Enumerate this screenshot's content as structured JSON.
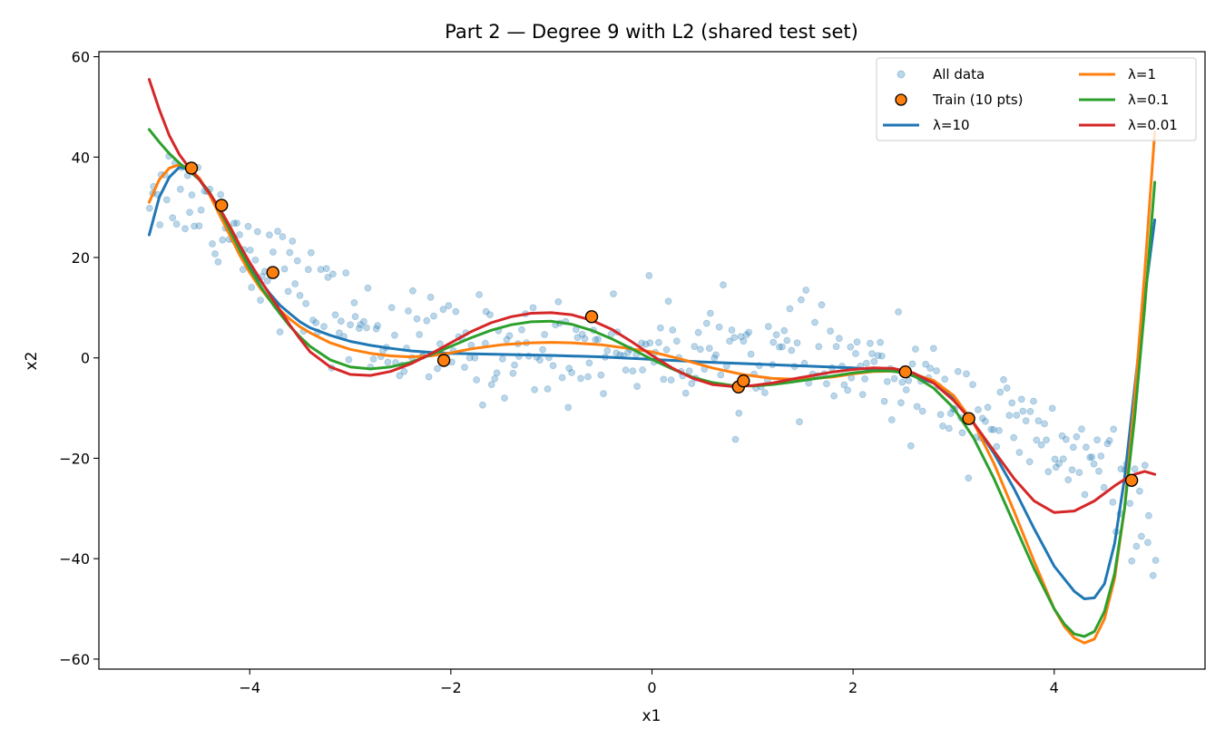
{
  "chart_data": {
    "type": "scatter",
    "title": "Part 2 — Degree 9 with L2 (shared test set)",
    "xlabel": "x1",
    "ylabel": "x2",
    "xlim": [
      -5.5,
      5.5
    ],
    "ylim": [
      -62,
      61
    ],
    "xticks": [
      {
        "value": -4,
        "label": "−4"
      },
      {
        "value": -2,
        "label": "−2"
      },
      {
        "value": 0,
        "label": "0"
      },
      {
        "value": 2,
        "label": "2"
      },
      {
        "value": 4,
        "label": "4"
      }
    ],
    "yticks": [
      {
        "value": -60,
        "label": "−60"
      },
      {
        "value": -40,
        "label": "−40"
      },
      {
        "value": -20,
        "label": "−20"
      },
      {
        "value": 0,
        "label": "0"
      },
      {
        "value": 20,
        "label": "20"
      },
      {
        "value": 40,
        "label": "40"
      },
      {
        "value": 60,
        "label": "60"
      }
    ],
    "legend": {
      "position": "top-right",
      "columns": 2,
      "entries": [
        {
          "label": "All data",
          "kind": "scatter-small",
          "color": "#1f77b4"
        },
        {
          "label": "Train (10 pts)",
          "kind": "scatter-train",
          "color": "#ff7f0e"
        },
        {
          "label": "λ=10",
          "kind": "line",
          "color": "#1f77b4"
        },
        {
          "label": "λ=1",
          "kind": "line",
          "color": "#ff7f0e"
        },
        {
          "label": "λ=0.1",
          "kind": "line",
          "color": "#2ca02c"
        },
        {
          "label": "λ=0.01",
          "kind": "line",
          "color": "#d62728"
        }
      ]
    },
    "all_data": {
      "name": "All data",
      "color": "#1f77b4",
      "alpha": 0.3,
      "count": 400,
      "x_range": [
        -5,
        5
      ],
      "trend_x": [
        -5,
        -4.6,
        -4.2,
        -3.8,
        -3.4,
        -3,
        -2.5,
        -2,
        -1.5,
        -1,
        -0.5,
        0,
        0.5,
        1,
        1.5,
        2,
        2.5,
        3,
        3.3,
        3.6,
        4,
        4.4,
        4.7,
        5
      ],
      "trend_y": [
        35,
        33,
        26,
        19,
        12,
        7,
        3,
        2,
        1.5,
        1.5,
        2,
        2,
        1.5,
        1,
        0,
        -2,
        -5,
        -8,
        -11,
        -14,
        -18,
        -22,
        -27,
        -33
      ],
      "noise_sd": 5
    },
    "train": {
      "name": "Train (10 pts)",
      "color": "#ff7f0e",
      "edge": "#000000",
      "x": [
        -4.58,
        -4.28,
        -3.77,
        -2.07,
        -0.6,
        0.86,
        0.91,
        2.52,
        3.15,
        4.77
      ],
      "y": [
        37.8,
        30.4,
        17.0,
        -0.5,
        8.2,
        -5.8,
        -4.6,
        -2.8,
        -12.1,
        -24.4
      ]
    },
    "series": [
      {
        "name": "λ=10",
        "color": "#1f77b4",
        "x": [
          -5,
          -4.9,
          -4.8,
          -4.7,
          -4.6,
          -4.5,
          -4.4,
          -4.3,
          -4.2,
          -4.1,
          -4,
          -3.9,
          -3.8,
          -3.7,
          -3.6,
          -3.5,
          -3.4,
          -3.2,
          -3,
          -2.8,
          -2.6,
          -2.4,
          -2.2,
          -2,
          -1.5,
          -1,
          -0.5,
          0,
          0.5,
          1,
          1.5,
          2,
          2.2,
          2.5,
          2.8,
          3,
          3.2,
          3.4,
          3.6,
          3.8,
          4,
          4.2,
          4.3,
          4.4,
          4.5,
          4.6,
          4.7,
          4.8,
          4.9,
          5
        ],
        "y": [
          24.5,
          32,
          36,
          38,
          37.5,
          35.5,
          32.5,
          29,
          25.5,
          22,
          18.5,
          15.5,
          12.8,
          10.5,
          8.8,
          7.2,
          6,
          4.5,
          3.3,
          2.5,
          1.9,
          1.4,
          1.1,
          0.9,
          0.7,
          0.5,
          0.2,
          -0.3,
          -0.8,
          -1.2,
          -1.6,
          -2,
          -2.3,
          -2.9,
          -5,
          -8,
          -13,
          -19,
          -26,
          -34,
          -41.5,
          -46.5,
          -48,
          -47.8,
          -45,
          -37,
          -24,
          -6,
          12,
          27.5
        ]
      },
      {
        "name": "λ=1",
        "color": "#ff7f0e",
        "x": [
          -5,
          -4.9,
          -4.8,
          -4.7,
          -4.6,
          -4.5,
          -4.4,
          -4.3,
          -4.2,
          -4.1,
          -4,
          -3.9,
          -3.8,
          -3.7,
          -3.6,
          -3.5,
          -3.4,
          -3.2,
          -3,
          -2.8,
          -2.6,
          -2.4,
          -2.2,
          -2,
          -1.8,
          -1.5,
          -1.2,
          -1,
          -0.8,
          -0.5,
          -0.2,
          0,
          0.3,
          0.6,
          0.9,
          1.2,
          1.5,
          1.8,
          2,
          2.2,
          2.5,
          2.8,
          3,
          3.2,
          3.4,
          3.6,
          3.8,
          4,
          4.1,
          4.2,
          4.3,
          4.4,
          4.5,
          4.6,
          4.7,
          4.8,
          4.9,
          5
        ],
        "y": [
          31,
          35.5,
          37.8,
          38.5,
          37.8,
          35.8,
          32.5,
          28.5,
          24.5,
          20.5,
          17,
          14,
          11.5,
          9.5,
          7.7,
          6.2,
          5,
          3,
          1.7,
          0.9,
          0.4,
          0.2,
          0.4,
          1,
          1.8,
          2.6,
          3,
          3.1,
          3,
          2.6,
          1.8,
          1.2,
          -0.3,
          -2,
          -3.3,
          -4.1,
          -4.3,
          -3.8,
          -3.2,
          -2.7,
          -2.6,
          -4.5,
          -7.5,
          -13,
          -21,
          -30.5,
          -40.5,
          -50,
          -53.5,
          -55.8,
          -56.8,
          -56,
          -52,
          -44,
          -30,
          -8,
          17,
          45
        ]
      },
      {
        "name": "λ=0.1",
        "color": "#2ca02c",
        "x": [
          -5,
          -4.9,
          -4.8,
          -4.7,
          -4.6,
          -4.5,
          -4.4,
          -4.3,
          -4.2,
          -4.1,
          -4,
          -3.9,
          -3.8,
          -3.7,
          -3.6,
          -3.5,
          -3.4,
          -3.2,
          -3,
          -2.8,
          -2.6,
          -2.4,
          -2.2,
          -2,
          -1.8,
          -1.6,
          -1.4,
          -1.2,
          -1,
          -0.8,
          -0.6,
          -0.4,
          -0.2,
          0,
          0.2,
          0.4,
          0.6,
          0.8,
          1,
          1.2,
          1.4,
          1.6,
          1.8,
          2,
          2.2,
          2.4,
          2.6,
          2.8,
          3,
          3.2,
          3.4,
          3.6,
          3.8,
          4,
          4.1,
          4.2,
          4.3,
          4.4,
          4.5,
          4.6,
          4.7,
          4.8,
          4.9,
          5
        ],
        "y": [
          45.5,
          43,
          40.7,
          38.8,
          37.2,
          35.5,
          33,
          29.5,
          25.5,
          21.5,
          17.8,
          14.5,
          11.5,
          8.8,
          6.3,
          4.2,
          2.3,
          -0.4,
          -1.8,
          -2.2,
          -1.8,
          -0.9,
          0.6,
          2.3,
          4,
          5.5,
          6.6,
          7.2,
          7.3,
          6.7,
          5.5,
          3.8,
          1.8,
          -0.3,
          -2.2,
          -3.8,
          -4.9,
          -5.5,
          -5.6,
          -5.3,
          -4.8,
          -4.2,
          -3.6,
          -3,
          -2.6,
          -2.6,
          -3.5,
          -6,
          -10,
          -16,
          -24,
          -33,
          -42,
          -50,
          -53,
          -55,
          -55.5,
          -54.5,
          -50.5,
          -43,
          -30,
          -12,
          10,
          35
        ]
      },
      {
        "name": "λ=0.01",
        "color": "#d62728",
        "x": [
          -5,
          -4.9,
          -4.8,
          -4.7,
          -4.6,
          -4.5,
          -4.4,
          -4.3,
          -4.2,
          -4.1,
          -4,
          -3.9,
          -3.8,
          -3.7,
          -3.6,
          -3.5,
          -3.4,
          -3.2,
          -3,
          -2.8,
          -2.6,
          -2.4,
          -2.2,
          -2,
          -1.8,
          -1.6,
          -1.4,
          -1.2,
          -1,
          -0.8,
          -0.6,
          -0.4,
          -0.2,
          0,
          0.2,
          0.4,
          0.6,
          0.8,
          1,
          1.2,
          1.4,
          1.6,
          1.8,
          2,
          2.2,
          2.4,
          2.6,
          2.8,
          3,
          3.2,
          3.4,
          3.6,
          3.8,
          4,
          4.2,
          4.4,
          4.6,
          4.7,
          4.8,
          4.9,
          5
        ],
        "y": [
          55.5,
          49.5,
          44.3,
          40.5,
          37.8,
          35.5,
          32.8,
          29.8,
          26.3,
          22.5,
          19,
          15.8,
          12.5,
          9.5,
          6.5,
          3.8,
          1.2,
          -1.8,
          -3.3,
          -3.5,
          -2.7,
          -1.2,
          0.8,
          3,
          5.2,
          7,
          8.2,
          8.9,
          9,
          8.6,
          7.5,
          5.7,
          3.2,
          0.5,
          -2,
          -4,
          -5.3,
          -5.7,
          -5.5,
          -5,
          -4.2,
          -3.5,
          -2.8,
          -2.3,
          -2,
          -2.1,
          -3,
          -5,
          -8.5,
          -13,
          -18.5,
          -24,
          -28.5,
          -30.8,
          -30.5,
          -28.5,
          -25.5,
          -24.2,
          -23.2,
          -22.6,
          -23.2
        ]
      }
    ]
  }
}
